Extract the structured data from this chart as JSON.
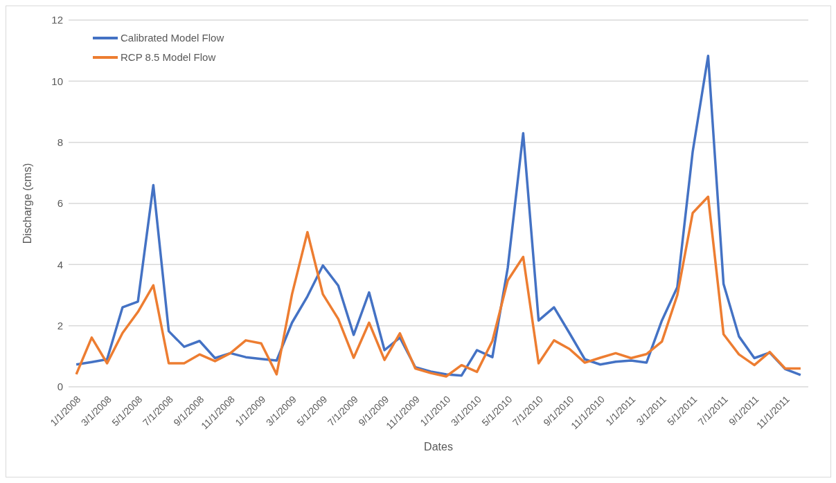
{
  "chart_data": {
    "type": "line",
    "xlabel": "Dates",
    "ylabel": "Discharge (cms)",
    "categories": [
      "1/1/2008",
      null,
      "3/1/2008",
      null,
      "5/1/2008",
      null,
      "7/1/2008",
      null,
      "9/1/2008",
      null,
      "11/1/2008",
      null,
      "1/1/2009",
      null,
      "3/1/2009",
      null,
      "5/1/2009",
      null,
      "7/1/2009",
      null,
      "9/1/2009",
      null,
      "11/1/2009",
      null,
      "1/1/2010",
      null,
      "3/1/2010",
      null,
      "5/1/2010",
      null,
      "7/1/2010",
      null,
      "9/1/2010",
      null,
      "11/1/2010",
      null,
      "1/1/2011",
      null,
      "3/1/2011",
      null,
      "5/1/2011",
      null,
      "7/1/2011",
      null,
      "9/1/2011",
      null,
      "11/1/2011",
      null
    ],
    "series": [
      {
        "name": "Calibrated Model Flow",
        "color": "#4472c4",
        "values": [
          0.73,
          0.81,
          0.9,
          2.6,
          2.79,
          6.6,
          1.82,
          1.31,
          1.5,
          0.94,
          1.1,
          0.97,
          0.91,
          0.86,
          2.1,
          2.96,
          3.97,
          3.31,
          1.7,
          3.09,
          1.2,
          1.61,
          0.64,
          0.5,
          0.41,
          0.37,
          1.2,
          0.97,
          3.9,
          8.3,
          2.17,
          2.6,
          1.76,
          0.9,
          0.73,
          0.82,
          0.86,
          0.79,
          2.17,
          3.26,
          7.7,
          10.83,
          3.37,
          1.65,
          0.94,
          1.12,
          0.58,
          0.39
        ]
      },
      {
        "name": "RCP 8.5 Model Flow",
        "color": "#ed7d31",
        "values": [
          0.41,
          1.61,
          0.77,
          1.76,
          2.45,
          3.32,
          0.77,
          0.77,
          1.06,
          0.84,
          1.1,
          1.52,
          1.42,
          0.41,
          3.03,
          5.06,
          3.03,
          2.22,
          0.95,
          2.1,
          0.88,
          1.75,
          0.6,
          0.45,
          0.34,
          0.71,
          0.49,
          1.5,
          3.48,
          4.25,
          0.77,
          1.52,
          1.24,
          0.79,
          0.95,
          1.1,
          0.94,
          1.07,
          1.48,
          3.0,
          5.69,
          6.22,
          1.72,
          1.06,
          0.71,
          1.14,
          0.6,
          0.6
        ]
      }
    ],
    "ylim": [
      0,
      12
    ],
    "yticks": [
      0,
      2,
      4,
      6,
      8,
      10,
      12
    ],
    "grid": "y",
    "legend": "top left",
    "marker": "none",
    "line_style": "solid"
  }
}
